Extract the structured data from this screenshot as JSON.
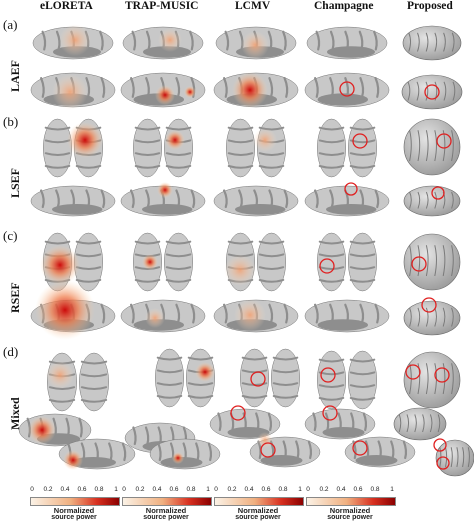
{
  "columns": [
    "eLORETA",
    "TRAP-MUSIC",
    "LCMV",
    "Champagne",
    "Proposed"
  ],
  "rows": [
    {
      "letter": "(a)",
      "name": "LAEF"
    },
    {
      "letter": "(b)",
      "name": "LSEF"
    },
    {
      "letter": "(c)",
      "name": "RSEF"
    },
    {
      "letter": "(d)",
      "name": "Mixed"
    }
  ],
  "colorbar": {
    "ticks": [
      "0",
      "0.2",
      "0.4",
      "0.6",
      "0.8",
      "1"
    ],
    "label_line1": "Normalized",
    "label_line2": "source power",
    "colors": {
      "low": "#fbf2e6",
      "mid": "#f0b080",
      "high": "#8b0000"
    }
  },
  "colors": {
    "cortex": "#8e8e8e",
    "cortex_light": "#c8c8c8",
    "realistic_brain": "#bdbdbd",
    "marker": "#e02020"
  }
}
